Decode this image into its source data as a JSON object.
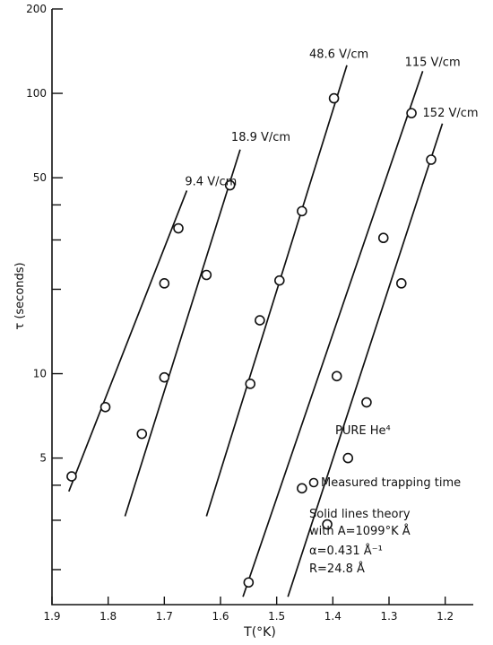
{
  "chart_data": {
    "type": "scatter",
    "title": "",
    "xlabel": "T(°K)",
    "ylabel": "τ (seconds)",
    "y_scale": "log",
    "x_reversed": true,
    "xlim": [
      1.9,
      1.15
    ],
    "ylim": [
      1.5,
      200
    ],
    "x_ticks": [
      1.9,
      1.8,
      1.7,
      1.6,
      1.5,
      1.4,
      1.3,
      1.2
    ],
    "x_tick_labels": [
      "1.9",
      "1.8",
      "1.7",
      "1.6",
      "1.5",
      "1.4",
      "1.3",
      "1.2"
    ],
    "y_tick_labels": [
      {
        "value": 5,
        "label": "5"
      },
      {
        "value": 10,
        "label": "10"
      },
      {
        "value": 50,
        "label": "50"
      },
      {
        "value": 100,
        "label": "100"
      },
      {
        "value": 200,
        "label": "200"
      }
    ],
    "y_minor_ticks": [
      2,
      3,
      4,
      20,
      30,
      40
    ],
    "grid": false,
    "series": [
      {
        "name": "9.4 V/cm",
        "points": [
          [
            1.865,
            4.3
          ],
          [
            1.805,
            7.6
          ],
          [
            1.7,
            21
          ],
          [
            1.675,
            33
          ]
        ],
        "line": [
          [
            1.87,
            3.8
          ],
          [
            1.66,
            45
          ]
        ]
      },
      {
        "name": "18.9 V/cm",
        "points": [
          [
            1.74,
            6.1
          ],
          [
            1.7,
            9.7
          ],
          [
            1.625,
            22.5
          ],
          [
            1.583,
            47
          ]
        ],
        "line": [
          [
            1.77,
            3.1
          ],
          [
            1.565,
            63
          ]
        ]
      },
      {
        "name": "48.6 V/cm",
        "points": [
          [
            1.547,
            9.2
          ],
          [
            1.53,
            15.5
          ],
          [
            1.495,
            21.5
          ],
          [
            1.455,
            38
          ],
          [
            1.398,
            96
          ]
        ],
        "line": [
          [
            1.625,
            3.1
          ],
          [
            1.375,
            126
          ]
        ]
      },
      {
        "name": "115 V/cm",
        "points": [
          [
            1.55,
            1.8
          ],
          [
            1.455,
            3.9
          ],
          [
            1.393,
            9.8
          ],
          [
            1.31,
            30.5
          ],
          [
            1.26,
            85
          ]
        ],
        "line": [
          [
            1.56,
            1.6
          ],
          [
            1.24,
            120
          ]
        ]
      },
      {
        "name": "152 V/cm",
        "points": [
          [
            1.41,
            2.9
          ],
          [
            1.373,
            5
          ],
          [
            1.34,
            7.9
          ],
          [
            1.278,
            21
          ],
          [
            1.225,
            58
          ]
        ],
        "line": [
          [
            1.48,
            1.6
          ],
          [
            1.205,
            78
          ]
        ]
      }
    ],
    "annotations": [
      "PURE He⁴",
      "Measured trapping time",
      "Solid lines theory",
      "with A=1099°K Å",
      "α=0.431 Å⁻¹",
      "R=24.8 Å"
    ]
  }
}
